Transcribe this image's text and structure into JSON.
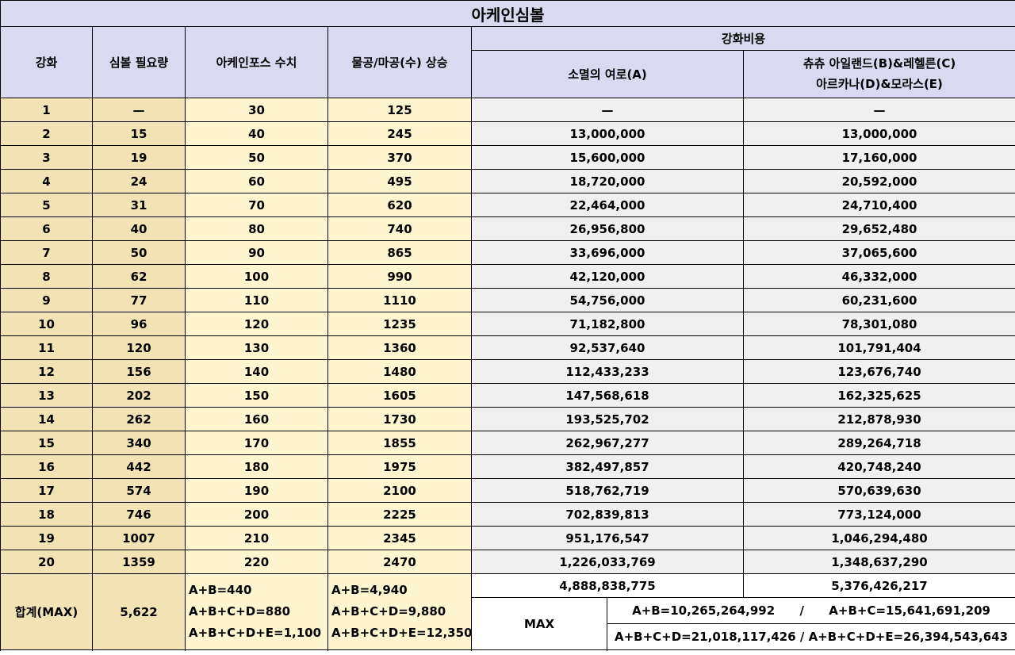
{
  "title": "아케인심볼",
  "headers": {
    "level": "강화",
    "symbol_req": "심볼 필요량",
    "arcane_force": "아케인포스 수치",
    "atk_increase": "물공/마공(수) 상승",
    "cost_group": "강화비용",
    "cost_vanishing": "소멸의 여로(A)",
    "cost_others_line1": "츄츄 아일랜드(B)&레헬른(C)",
    "cost_others_line2": "아르카나(D)&모라스(E)"
  },
  "rows": [
    {
      "level": "1",
      "symbols": "—",
      "force": "30",
      "atk": "125",
      "costA": "—",
      "costB": "—"
    },
    {
      "level": "2",
      "symbols": "15",
      "force": "40",
      "atk": "245",
      "costA": "13,000,000",
      "costB": "13,000,000"
    },
    {
      "level": "3",
      "symbols": "19",
      "force": "50",
      "atk": "370",
      "costA": "15,600,000",
      "costB": "17,160,000"
    },
    {
      "level": "4",
      "symbols": "24",
      "force": "60",
      "atk": "495",
      "costA": "18,720,000",
      "costB": "20,592,000"
    },
    {
      "level": "5",
      "symbols": "31",
      "force": "70",
      "atk": "620",
      "costA": "22,464,000",
      "costB": "24,710,400"
    },
    {
      "level": "6",
      "symbols": "40",
      "force": "80",
      "atk": "740",
      "costA": "26,956,800",
      "costB": "29,652,480"
    },
    {
      "level": "7",
      "symbols": "50",
      "force": "90",
      "atk": "865",
      "costA": "33,696,000",
      "costB": "37,065,600"
    },
    {
      "level": "8",
      "symbols": "62",
      "force": "100",
      "atk": "990",
      "costA": "42,120,000",
      "costB": "46,332,000"
    },
    {
      "level": "9",
      "symbols": "77",
      "force": "110",
      "atk": "1110",
      "costA": "54,756,000",
      "costB": "60,231,600"
    },
    {
      "level": "10",
      "symbols": "96",
      "force": "120",
      "atk": "1235",
      "costA": "71,182,800",
      "costB": "78,301,080"
    },
    {
      "level": "11",
      "symbols": "120",
      "force": "130",
      "atk": "1360",
      "costA": "92,537,640",
      "costB": "101,791,404"
    },
    {
      "level": "12",
      "symbols": "156",
      "force": "140",
      "atk": "1480",
      "costA": "112,433,233",
      "costB": "123,676,740"
    },
    {
      "level": "13",
      "symbols": "202",
      "force": "150",
      "atk": "1605",
      "costA": "147,568,618",
      "costB": "162,325,625"
    },
    {
      "level": "14",
      "symbols": "262",
      "force": "160",
      "atk": "1730",
      "costA": "193,525,702",
      "costB": "212,878,930"
    },
    {
      "level": "15",
      "symbols": "340",
      "force": "170",
      "atk": "1855",
      "costA": "262,967,277",
      "costB": "289,264,718"
    },
    {
      "level": "16",
      "symbols": "442",
      "force": "180",
      "atk": "1975",
      "costA": "382,497,857",
      "costB": "420,748,240"
    },
    {
      "level": "17",
      "symbols": "574",
      "force": "190",
      "atk": "2100",
      "costA": "518,762,719",
      "costB": "570,639,630"
    },
    {
      "level": "18",
      "symbols": "746",
      "force": "200",
      "atk": "2225",
      "costA": "702,839,813",
      "costB": "773,124,000"
    },
    {
      "level": "19",
      "symbols": "1007",
      "force": "210",
      "atk": "2345",
      "costA": "951,176,547",
      "costB": "1,046,294,480"
    },
    {
      "level": "20",
      "symbols": "1359",
      "force": "220",
      "atk": "2470",
      "costA": "1,226,033,769",
      "costB": "1,348,637,290"
    }
  ],
  "total": {
    "label": "합계(MAX)",
    "symbols": "5,622",
    "force_lines": [
      "A+B=440",
      "A+B+C+D=880",
      "A+B+C+D+E=1,100"
    ],
    "atk_lines": [
      "A+B=4,940",
      "A+B+C+D=9,880",
      "A+B+C+D+E=12,350"
    ],
    "costA": "4,888,838,775",
    "costB": "5,376,426,217",
    "max_label": "MAX",
    "max_line1": "A+B=10,265,264,992      /      A+B+C=15,641,691,209",
    "max_line2": "A+B+C+D=21,018,117,426 / A+B+C+D+E=26,394,543,643"
  }
}
